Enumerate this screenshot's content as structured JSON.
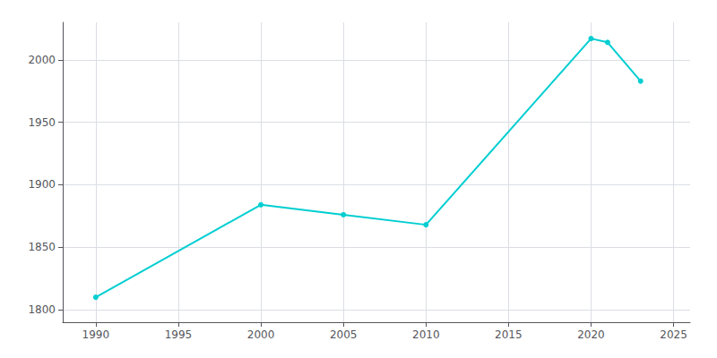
{
  "chart_data": {
    "type": "line",
    "x": [
      1990,
      2000,
      2005,
      2010,
      2020,
      2021,
      2023
    ],
    "values": [
      1810,
      1884,
      1876,
      1868,
      2017,
      2014,
      1983
    ],
    "color": "#00CED1",
    "marker": "circle",
    "xlim": [
      1988,
      2026
    ],
    "ylim": [
      1790,
      2030
    ],
    "xticks": [
      1990,
      1995,
      2000,
      2005,
      2010,
      2015,
      2020,
      2025
    ],
    "yticks": [
      1800,
      1850,
      1900,
      1950,
      2000
    ],
    "grid": true
  }
}
